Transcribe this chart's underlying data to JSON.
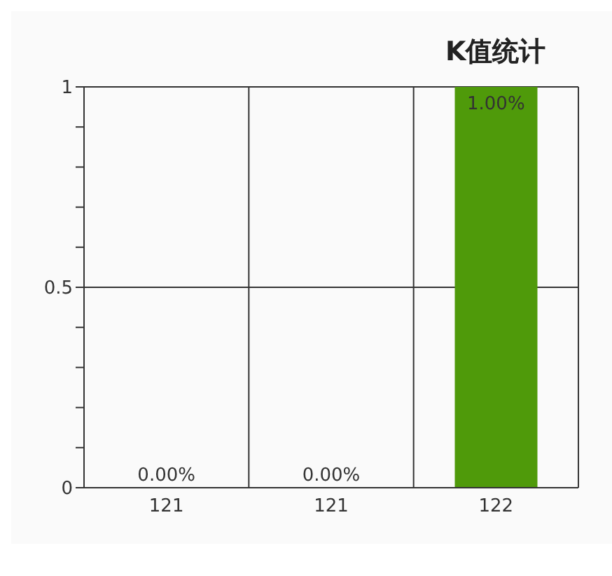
{
  "chart_data": {
    "type": "bar",
    "title": "K值统计",
    "categories": [
      "121",
      "121",
      "122"
    ],
    "values": [
      0,
      0,
      1
    ],
    "value_labels": [
      "0.00%",
      "0.00%",
      "1.00%"
    ],
    "color": "#4f9a0a",
    "ylim": [
      0,
      1
    ],
    "yticks": [
      0,
      {
        "value": 0.1,
        "label": null
      },
      {
        "value": 0.2,
        "label": null
      },
      {
        "value": 0.3,
        "label": null
      },
      {
        "value": 0.4,
        "label": null
      },
      0.5,
      {
        "value": 0.6,
        "label": null
      },
      {
        "value": 0.7,
        "label": null
      },
      {
        "value": 0.8,
        "label": null
      },
      {
        "value": 0.9,
        "label": null
      },
      1
    ],
    "grid": true
  }
}
